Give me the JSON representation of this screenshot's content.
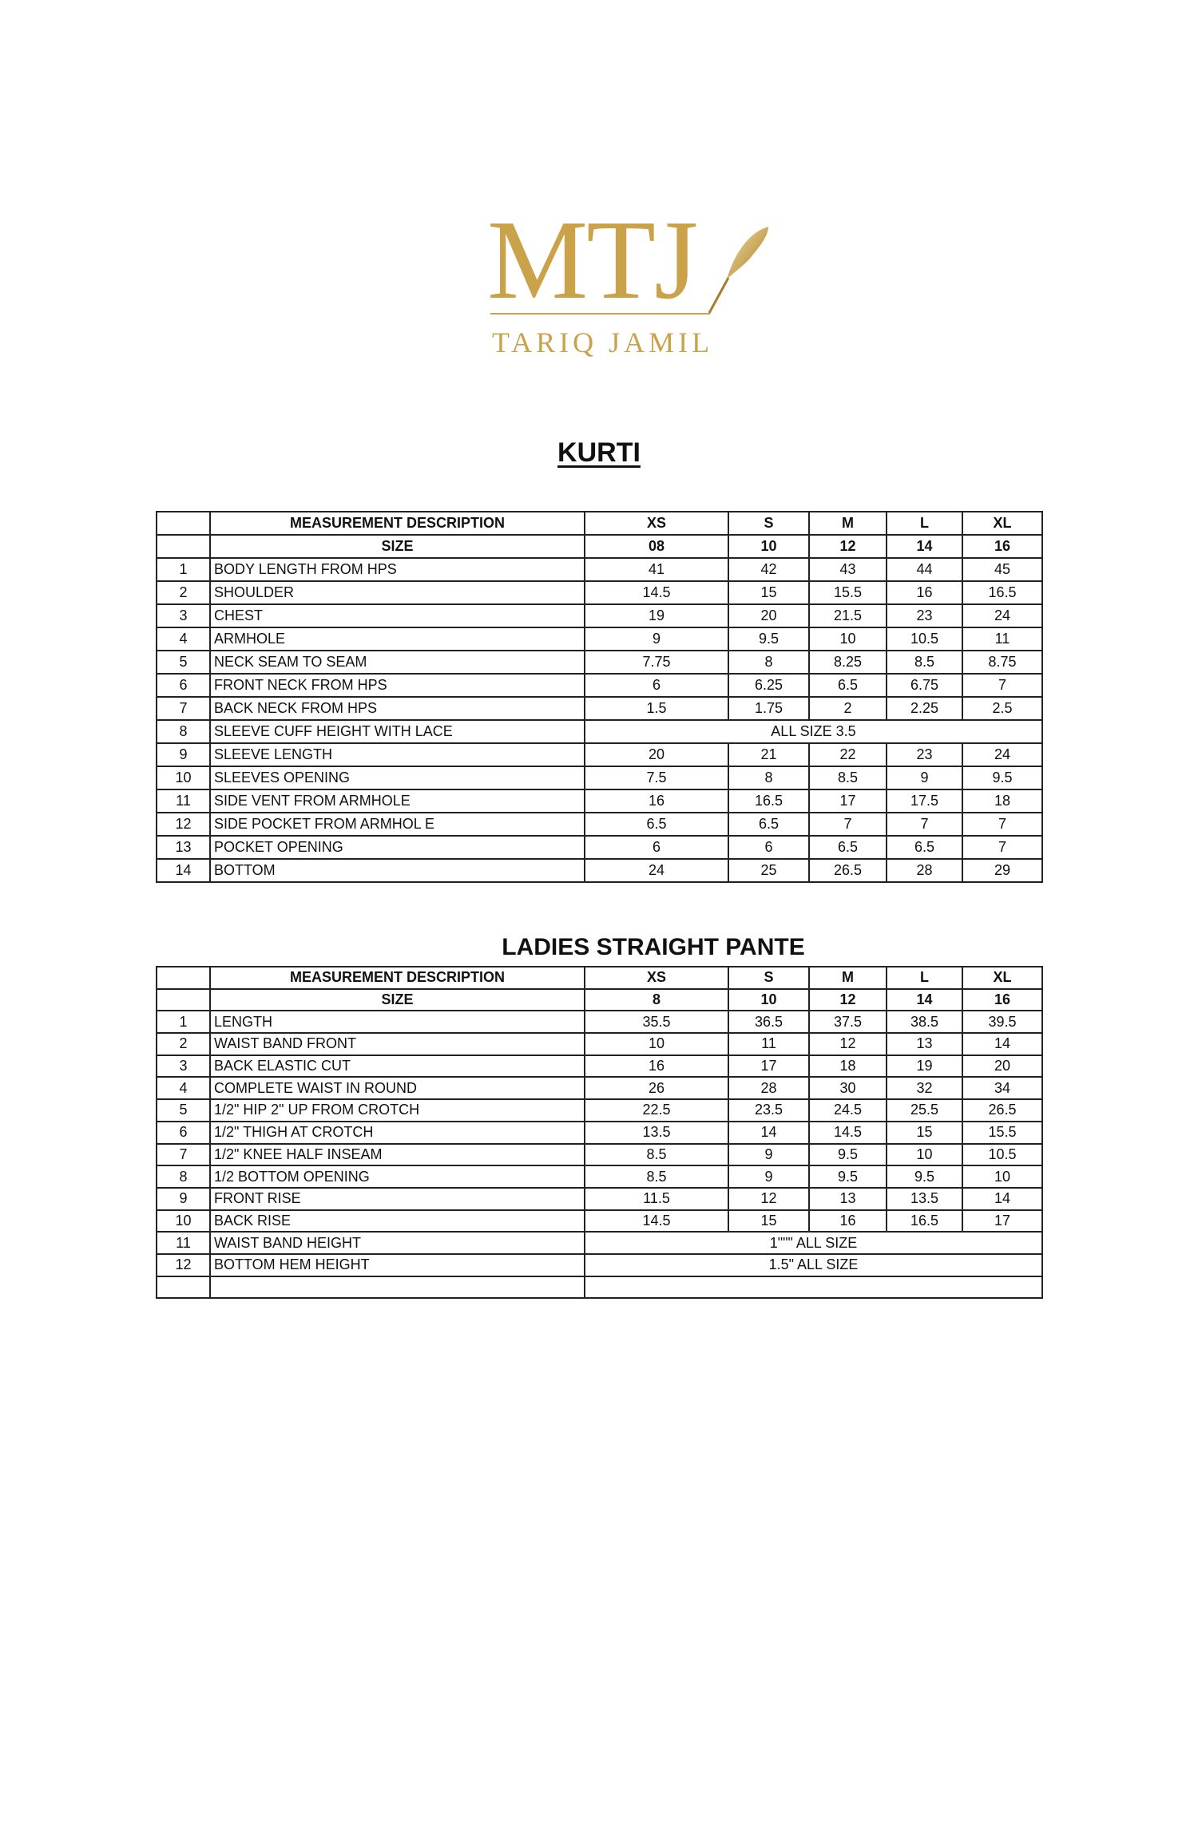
{
  "logo": {
    "monogram": "MTJ",
    "brand": "TARIQ JAMIL",
    "color": "#c9a24a",
    "icon": "feather-quill-icon"
  },
  "kurti": {
    "title": "KURTI",
    "header": {
      "desc": "MEASUREMENT DESCRIPTION",
      "sizes": [
        "XS",
        "S",
        "M",
        "L",
        "XL"
      ]
    },
    "size_row": {
      "label": "SIZE",
      "values": [
        "08",
        "10",
        "12",
        "14",
        "16"
      ]
    },
    "rows": [
      {
        "no": "1",
        "desc": "BODY LENGTH FROM HPS",
        "values": [
          "41",
          "42",
          "43",
          "44",
          "45"
        ]
      },
      {
        "no": "2",
        "desc": "SHOULDER",
        "values": [
          "14.5",
          "15",
          "15.5",
          "16",
          "16.5"
        ]
      },
      {
        "no": "3",
        "desc": "CHEST",
        "values": [
          "19",
          "20",
          "21.5",
          "23",
          "24"
        ]
      },
      {
        "no": "4",
        "desc": "ARMHOLE",
        "values": [
          "9",
          "9.5",
          "10",
          "10.5",
          "11"
        ]
      },
      {
        "no": "5",
        "desc": "NECK SEAM TO SEAM",
        "values": [
          "7.75",
          "8",
          "8.25",
          "8.5",
          "8.75"
        ]
      },
      {
        "no": "6",
        "desc": "FRONT NECK FROM HPS",
        "values": [
          "6",
          "6.25",
          "6.5",
          "6.75",
          "7"
        ]
      },
      {
        "no": "7",
        "desc": "BACK NECK FROM HPS",
        "values": [
          "1.5",
          "1.75",
          "2",
          "2.25",
          "2.5"
        ]
      },
      {
        "no": "8",
        "desc": "SLEEVE CUFF HEIGHT WITH LACE",
        "all": "ALL SIZE 3.5"
      },
      {
        "no": "9",
        "desc": "SLEEVE LENGTH",
        "values": [
          "20",
          "21",
          "22",
          "23",
          "24"
        ]
      },
      {
        "no": "10",
        "desc": "SLEEVES OPENING",
        "values": [
          "7.5",
          "8",
          "8.5",
          "9",
          "9.5"
        ]
      },
      {
        "no": "11",
        "desc": "SIDE VENT FROM ARMHOLE",
        "values": [
          "16",
          "16.5",
          "17",
          "17.5",
          "18"
        ]
      },
      {
        "no": "12",
        "desc": "SIDE POCKET FROM ARMHOL E",
        "values": [
          "6.5",
          "6.5",
          "7",
          "7",
          "7"
        ]
      },
      {
        "no": "13",
        "desc": "POCKET OPENING",
        "values": [
          "6",
          "6",
          "6.5",
          "6.5",
          "7"
        ]
      },
      {
        "no": "14",
        "desc": "BOTTOM",
        "values": [
          "24",
          "25",
          "26.5",
          "28",
          "29"
        ]
      }
    ]
  },
  "pante": {
    "title": "LADIES STRAIGHT PANTE",
    "header": {
      "desc": "MEASUREMENT DESCRIPTION",
      "sizes": [
        "XS",
        "S",
        "M",
        "L",
        "XL"
      ]
    },
    "size_row": {
      "label": "SIZE",
      "values": [
        "8",
        "10",
        "12",
        "14",
        "16"
      ]
    },
    "rows": [
      {
        "no": "1",
        "desc": "LENGTH",
        "values": [
          "35.5",
          "36.5",
          "37.5",
          "38.5",
          "39.5"
        ]
      },
      {
        "no": "2",
        "desc": "WAIST BAND FRONT",
        "values": [
          "10",
          "11",
          "12",
          "13",
          "14"
        ]
      },
      {
        "no": "3",
        "desc": "BACK ELASTIC CUT",
        "values": [
          "16",
          "17",
          "18",
          "19",
          "20"
        ]
      },
      {
        "no": "4",
        "desc": "COMPLETE WAIST IN ROUND",
        "values": [
          "26",
          "28",
          "30",
          "32",
          "34"
        ]
      },
      {
        "no": "5",
        "desc": "1/2\" HIP 2\" UP FROM CROTCH",
        "values": [
          "22.5",
          "23.5",
          "24.5",
          "25.5",
          "26.5"
        ]
      },
      {
        "no": "6",
        "desc": "1/2\" THIGH AT CROTCH",
        "values": [
          "13.5",
          "14",
          "14.5",
          "15",
          "15.5"
        ]
      },
      {
        "no": "7",
        "desc": "1/2\" KNEE HALF INSEAM",
        "values": [
          "8.5",
          "9",
          "9.5",
          "10",
          "10.5"
        ]
      },
      {
        "no": "8",
        "desc": "1/2 BOTTOM OPENING",
        "values": [
          "8.5",
          "9",
          "9.5",
          "9.5",
          "10"
        ]
      },
      {
        "no": "9",
        "desc": "FRONT RISE",
        "values": [
          "11.5",
          "12",
          "13",
          "13.5",
          "14"
        ]
      },
      {
        "no": "10",
        "desc": "BACK RISE",
        "values": [
          "14.5",
          "15",
          "16",
          "16.5",
          "17"
        ]
      },
      {
        "no": "11",
        "desc": "WAIST BAND HEIGHT",
        "all": "1\"\"\" ALL SIZE"
      },
      {
        "no": "12",
        "desc": "BOTTOM HEM HEIGHT",
        "all": "1.5\" ALL SIZE"
      },
      {
        "no": "",
        "desc": "",
        "all": ""
      }
    ]
  }
}
